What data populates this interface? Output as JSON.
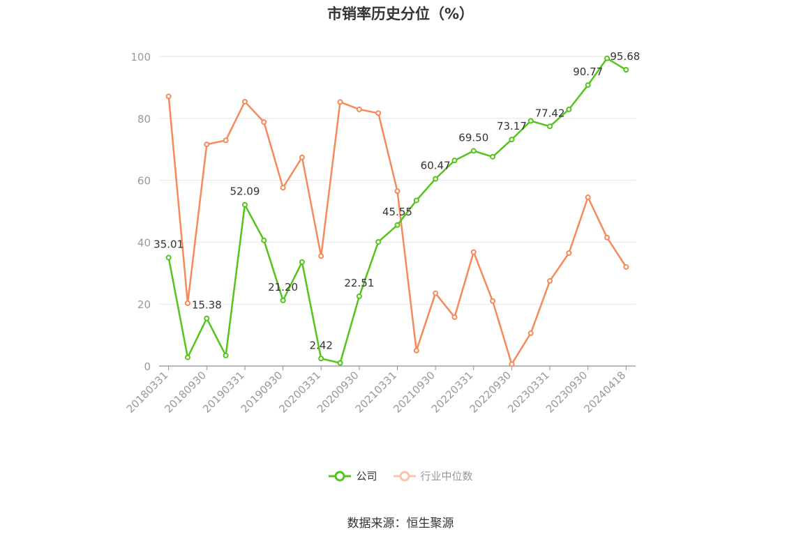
{
  "chart_data": {
    "type": "line",
    "title": "市销率历史分位（%）",
    "xlabel": "",
    "ylabel": "",
    "ylim": [
      0,
      100
    ],
    "yticks": [
      0,
      20,
      40,
      60,
      80,
      100
    ],
    "grid": true,
    "legend_position": "bottom",
    "tick_labels": [
      "20180331",
      "20180930",
      "20190331",
      "20190930",
      "20200331",
      "20200930",
      "20210331",
      "20210930",
      "20220331",
      "20220930",
      "20230331",
      "20230930",
      "20240418"
    ],
    "x": [
      "20180331",
      "20180630",
      "20180930",
      "20181231",
      "20190331",
      "20190630",
      "20190930",
      "20191231",
      "20200331",
      "20200630",
      "20200930",
      "20201231",
      "20210331",
      "20210630",
      "20210930",
      "20211231",
      "20220331",
      "20220630",
      "20220930",
      "20221231",
      "20230331",
      "20230630",
      "20230930",
      "20231231",
      "20240418"
    ],
    "series": [
      {
        "name": "公司",
        "color": "#52c41a",
        "values": [
          35.01,
          2.8,
          15.38,
          3.4,
          52.09,
          40.6,
          21.2,
          33.6,
          2.42,
          1.0,
          22.51,
          40.1,
          45.55,
          53.5,
          60.47,
          66.4,
          69.5,
          67.6,
          73.17,
          79.2,
          77.42,
          82.9,
          90.77,
          99.4,
          95.68
        ],
        "labels": {
          "0": "35.01",
          "2": "15.38",
          "4": "52.09",
          "6": "21.20",
          "8": "2.42",
          "10": "22.51",
          "12": "45.55",
          "14": "60.47",
          "16": "69.50",
          "18": "73.17",
          "20": "77.42",
          "22": "90.77",
          "24": "95.68"
        }
      },
      {
        "name": "行业中位数",
        "color": "#f5895a",
        "values": [
          87.1,
          20.3,
          71.6,
          72.9,
          85.4,
          78.8,
          57.6,
          67.4,
          35.5,
          85.3,
          82.9,
          81.7,
          56.5,
          5.0,
          23.5,
          15.8,
          36.8,
          21.0,
          0.6,
          10.6,
          27.5,
          36.5,
          54.5,
          41.5,
          32.0
        ]
      }
    ]
  },
  "legend": {
    "items": [
      {
        "label": "公司",
        "state": "active"
      },
      {
        "label": "行业中位数",
        "state": "inactive"
      }
    ]
  },
  "footer": {
    "source": "数据来源：恒生聚源"
  }
}
